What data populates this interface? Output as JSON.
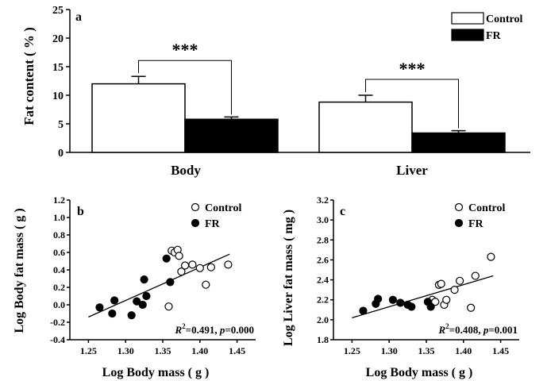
{
  "chart_data": [
    {
      "panel_label": "a",
      "type": "bar",
      "ylabel": "Fat content ( % )",
      "ylim": [
        0,
        25
      ],
      "yticks": [
        "0",
        "5",
        "10",
        "15",
        "20",
        "25"
      ],
      "categories": [
        "Body",
        "Liver"
      ],
      "series": [
        {
          "name": "Control",
          "values": [
            12.0,
            8.8
          ],
          "errors": [
            1.3,
            1.2
          ],
          "fill": "#ffffff"
        },
        {
          "name": "FR",
          "values": [
            5.8,
            3.4
          ],
          "errors": [
            0.4,
            0.4
          ],
          "fill": "#000000"
        }
      ],
      "significance": [
        "***",
        "***"
      ],
      "legend": "top-right",
      "grid": false
    },
    {
      "panel_label": "b",
      "type": "scatter",
      "xlabel": "Log Body mass ( g )",
      "ylabel": "Log  Body fat mass ( g )",
      "xlim": [
        1.225,
        1.475
      ],
      "ylim": [
        -0.4,
        1.2
      ],
      "xticks": [
        "1.25",
        "1.30",
        "1.35",
        "1.40",
        "1.45"
      ],
      "yticks": [
        "-0.4",
        "-0.2",
        "0.0",
        "0.2",
        "0.4",
        "0.6",
        "0.8",
        "1.0",
        "1.2"
      ],
      "series": [
        {
          "name": "Control",
          "marker": "open",
          "x": [
            1.358,
            1.362,
            1.366,
            1.37,
            1.372,
            1.375,
            1.38,
            1.39,
            1.4,
            1.408,
            1.415,
            1.438
          ],
          "y": [
            -0.02,
            0.62,
            0.6,
            0.63,
            0.56,
            0.38,
            0.45,
            0.46,
            0.42,
            0.23,
            0.43,
            0.46
          ]
        },
        {
          "name": "FR",
          "marker": "filled",
          "x": [
            1.265,
            1.282,
            1.285,
            1.308,
            1.315,
            1.323,
            1.325,
            1.328,
            1.355,
            1.36
          ],
          "y": [
            -0.03,
            -0.1,
            0.05,
            -0.12,
            0.04,
            0.0,
            0.29,
            0.1,
            0.53,
            0.26
          ]
        }
      ],
      "fit_line": {
        "x": [
          1.25,
          1.44
        ],
        "y": [
          -0.14,
          0.58
        ]
      },
      "annotation": {
        "r2_label": "R",
        "r2_sup": "2",
        "r2_text": "=0.491, ",
        "p_label": "p",
        "p_text": "=0.000"
      },
      "legend": "top-right",
      "grid": false
    },
    {
      "panel_label": "c",
      "type": "scatter",
      "xlabel": "Log Body mass ( g )",
      "ylabel": "Log  Liver fat mass ( mg )",
      "xlim": [
        1.225,
        1.475
      ],
      "ylim": [
        1.8,
        3.2
      ],
      "xticks": [
        "1.25",
        "1.30",
        "1.35",
        "1.40",
        "1.45"
      ],
      "yticks": [
        "1.8",
        "2.0",
        "2.2",
        "2.4",
        "2.6",
        "2.8",
        "3.0",
        "3.2"
      ],
      "series": [
        {
          "name": "Control",
          "marker": "open",
          "x": [
            1.358,
            1.362,
            1.367,
            1.37,
            1.374,
            1.377,
            1.388,
            1.395,
            1.41,
            1.416,
            1.437
          ],
          "y": [
            2.2,
            2.18,
            2.35,
            2.36,
            2.15,
            2.2,
            2.3,
            2.39,
            2.12,
            2.44,
            2.63
          ]
        },
        {
          "name": "FR",
          "marker": "filled",
          "x": [
            1.265,
            1.282,
            1.285,
            1.305,
            1.315,
            1.325,
            1.33,
            1.352,
            1.356
          ],
          "y": [
            2.09,
            2.16,
            2.21,
            2.2,
            2.17,
            2.15,
            2.13,
            2.18,
            2.13
          ]
        }
      ],
      "fit_line": {
        "x": [
          1.25,
          1.44
        ],
        "y": [
          2.02,
          2.44
        ]
      },
      "annotation": {
        "r2_label": "R",
        "r2_sup": "2",
        "r2_text": "=0.408, ",
        "p_label": "p",
        "p_text": "=0.001"
      },
      "legend": "top-right",
      "grid": false
    }
  ]
}
